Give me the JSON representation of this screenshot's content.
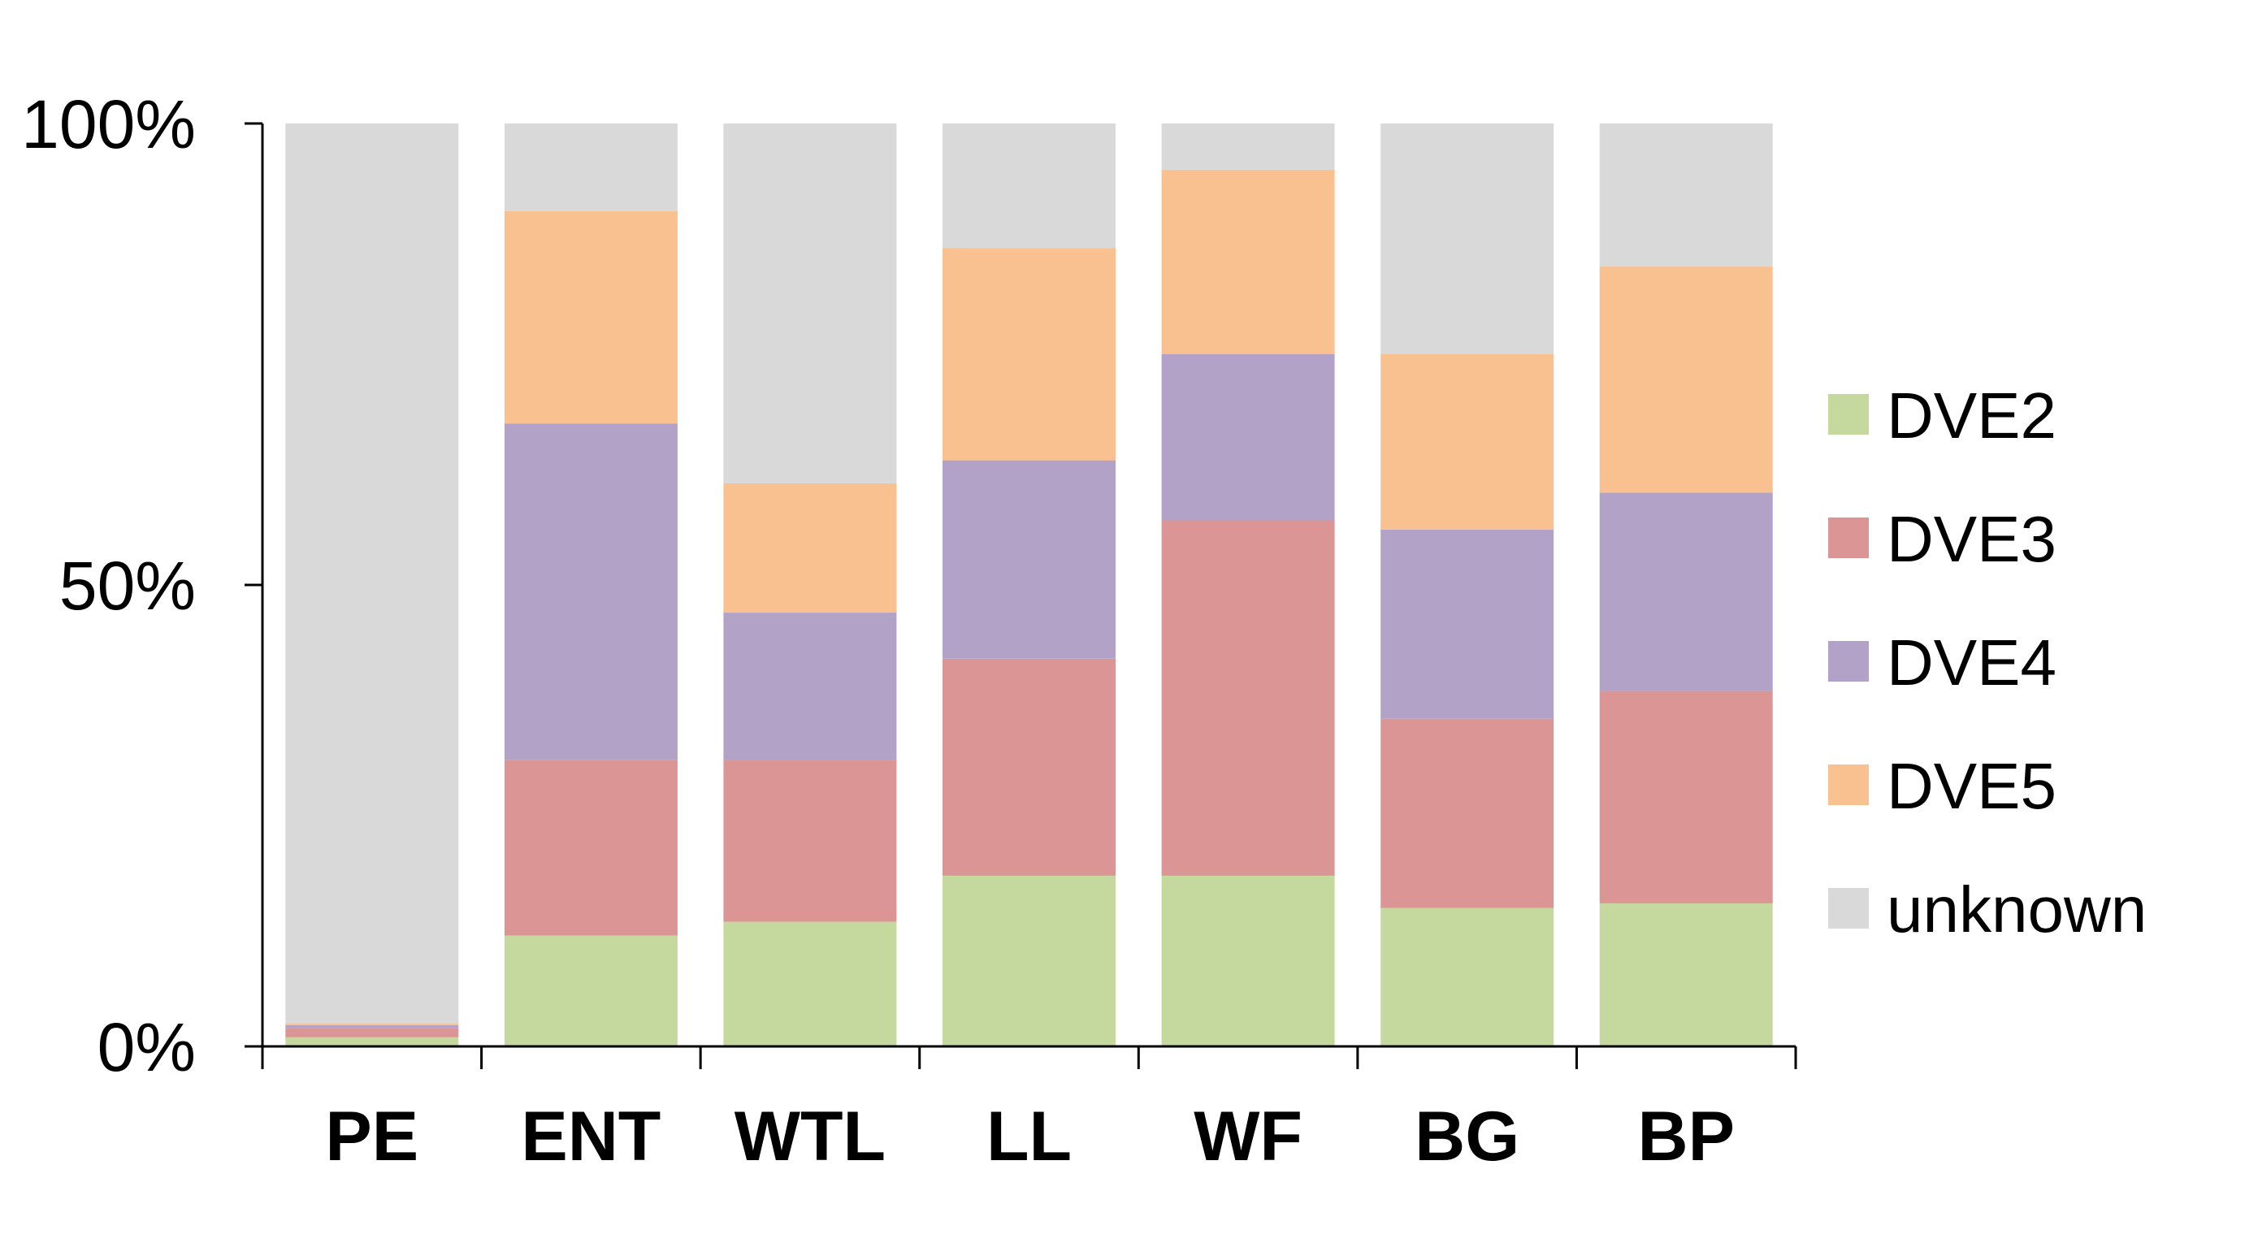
{
  "chart_data": {
    "type": "bar",
    "stacked": true,
    "categories": [
      "PE",
      "ENT",
      "WTL",
      "LL",
      "WF",
      "BG",
      "BP"
    ],
    "series": [
      {
        "name": "DVE2",
        "color": "#c5d89e",
        "values": [
          1,
          12,
          13.5,
          18.5,
          18.5,
          15,
          15.5
        ]
      },
      {
        "name": "DVE3",
        "color": "#da9594",
        "values": [
          1,
          19,
          17.5,
          23.5,
          38.5,
          20.5,
          23
        ]
      },
      {
        "name": "DVE4",
        "color": "#b3a2c8",
        "values": [
          0.3,
          36.5,
          16,
          21.5,
          18,
          20.5,
          21.5
        ]
      },
      {
        "name": "DVE5",
        "color": "#f9c090",
        "values": [
          0.2,
          23,
          14,
          23,
          20,
          19,
          24.5
        ]
      },
      {
        "name": "unknown",
        "color": "#d9d9d9",
        "values": [
          97.5,
          9.5,
          39,
          13.5,
          5,
          25,
          15.5
        ]
      }
    ],
    "yticks": [
      "0%",
      "50%",
      "100%"
    ],
    "ylim": [
      0,
      100
    ],
    "legend": "right",
    "grid": false
  }
}
